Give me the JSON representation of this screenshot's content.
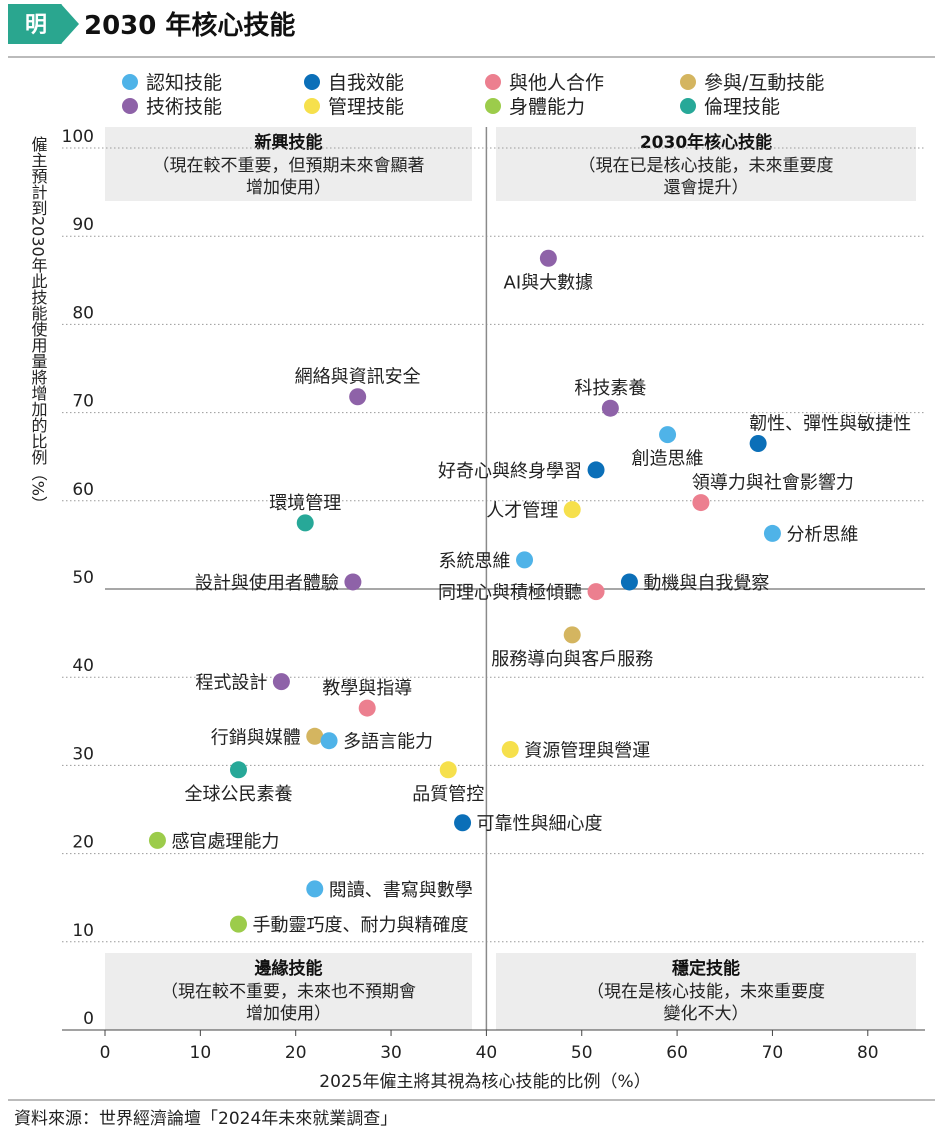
{
  "header": {
    "logo_text": "明",
    "title": "2030 年核心技能"
  },
  "colors": {
    "認知技能": "#4fb3e8",
    "自我效能": "#0b6fb8",
    "與他人合作": "#ec7f8f",
    "參與/互動技能": "#d4b560",
    "技術技能": "#8e62a8",
    "管理技能": "#f6e04c",
    "身體能力": "#9ccc4b",
    "倫理技能": "#27a898",
    "accent_green": "#2aa68f",
    "quadrant_bg": "#ededed"
  },
  "footer": {
    "source": "資料來源：世界經濟論壇「2024年未來就業調查」"
  },
  "chart_data": {
    "type": "scatter",
    "title": "2030 年核心技能",
    "xlabel": "2025年僱主將其視為核心技能的比例（%）",
    "ylabel": "僱主預計到2030年此技能使用量將增加的比例（%）",
    "xlim": [
      0,
      86
    ],
    "ylim": [
      0,
      100
    ],
    "xticks": [
      0,
      10,
      20,
      30,
      40,
      50,
      60,
      70,
      80
    ],
    "yticks": [
      0,
      10,
      20,
      30,
      40,
      50,
      60,
      70,
      80,
      90,
      100
    ],
    "divider_x": 40,
    "divider_y": 50,
    "grid": true,
    "legend": [
      "認知技能",
      "自我效能",
      "與他人合作",
      "參與/互動技能",
      "技術技能",
      "管理技能",
      "身體能力",
      "倫理技能"
    ],
    "quadrants": [
      {
        "id": "emerging",
        "position": "top-left",
        "title": "新興技能",
        "lines": [
          "（現在較不重要，但預期未來會顯著",
          "增加使用）"
        ]
      },
      {
        "id": "core",
        "position": "top-right",
        "title": "2030年核心技能",
        "lines": [
          "（現在已是核心技能，未來重要度",
          "還會提升）"
        ]
      },
      {
        "id": "marginal",
        "position": "bottom-left",
        "title": "邊緣技能",
        "lines": [
          "（現在較不重要，未來也不預期會",
          "增加使用）"
        ]
      },
      {
        "id": "stable",
        "position": "bottom-right",
        "title": "穩定技能",
        "lines": [
          "（現在是核心技能，未來重要度",
          "變化不大）"
        ]
      }
    ],
    "points": [
      {
        "label": "AI與大數據",
        "category": "技術技能",
        "x": 46.5,
        "y": 87.5,
        "label_pos": "below"
      },
      {
        "label": "網絡與資訊安全",
        "category": "技術技能",
        "x": 26.5,
        "y": 71.8,
        "label_pos": "above"
      },
      {
        "label": "科技素養",
        "category": "技術技能",
        "x": 53.0,
        "y": 70.5,
        "label_pos": "above"
      },
      {
        "label": "韌性、彈性與敏捷性",
        "category": "自我效能",
        "x": 68.5,
        "y": 66.5,
        "label_pos": "above-right"
      },
      {
        "label": "創造思維",
        "category": "認知技能",
        "x": 59.0,
        "y": 67.5,
        "label_pos": "below"
      },
      {
        "label": "好奇心與終身學習",
        "category": "自我效能",
        "x": 51.5,
        "y": 63.5,
        "label_pos": "left"
      },
      {
        "label": "領導力與社會影響力",
        "category": "與他人合作",
        "x": 62.5,
        "y": 59.8,
        "label_pos": "above-right"
      },
      {
        "label": "人才管理",
        "category": "管理技能",
        "x": 49.0,
        "y": 59.0,
        "label_pos": "left"
      },
      {
        "label": "分析思維",
        "category": "認知技能",
        "x": 70.0,
        "y": 56.3,
        "label_pos": "right"
      },
      {
        "label": "環境管理",
        "category": "倫理技能",
        "x": 21.0,
        "y": 57.5,
        "label_pos": "above"
      },
      {
        "label": "系統思維",
        "category": "認知技能",
        "x": 44.0,
        "y": 53.3,
        "label_pos": "left"
      },
      {
        "label": "設計與使用者體驗",
        "category": "技術技能",
        "x": 26.0,
        "y": 50.8,
        "label_pos": "left"
      },
      {
        "label": "動機與自我覺察",
        "category": "自我效能",
        "x": 55.0,
        "y": 50.8,
        "label_pos": "right"
      },
      {
        "label": "同理心與積極傾聽",
        "category": "與他人合作",
        "x": 51.5,
        "y": 49.7,
        "label_pos": "left"
      },
      {
        "label": "服務導向與客戶服務",
        "category": "參與/互動技能",
        "x": 49.0,
        "y": 44.8,
        "label_pos": "below"
      },
      {
        "label": "程式設計",
        "category": "技術技能",
        "x": 18.5,
        "y": 39.5,
        "label_pos": "left"
      },
      {
        "label": "教學與指導",
        "category": "與他人合作",
        "x": 27.5,
        "y": 36.5,
        "label_pos": "above"
      },
      {
        "label": "行銷與媒體",
        "category": "參與/互動技能",
        "x": 22.0,
        "y": 33.3,
        "label_pos": "left"
      },
      {
        "label": "多語言能力",
        "category": "認知技能",
        "x": 23.5,
        "y": 32.8,
        "label_pos": "right"
      },
      {
        "label": "資源管理與營運",
        "category": "管理技能",
        "x": 42.5,
        "y": 31.8,
        "label_pos": "right"
      },
      {
        "label": "全球公民素養",
        "category": "倫理技能",
        "x": 14.0,
        "y": 29.5,
        "label_pos": "below"
      },
      {
        "label": "品質管控",
        "category": "管理技能",
        "x": 36.0,
        "y": 29.5,
        "label_pos": "below"
      },
      {
        "label": "可靠性與細心度",
        "category": "自我效能",
        "x": 37.5,
        "y": 23.5,
        "label_pos": "right"
      },
      {
        "label": "感官處理能力",
        "category": "身體能力",
        "x": 5.5,
        "y": 21.5,
        "label_pos": "right"
      },
      {
        "label": "閱讀、書寫與數學",
        "category": "認知技能",
        "x": 22.0,
        "y": 16.0,
        "label_pos": "right"
      },
      {
        "label": "手動靈巧度、耐力與精確度",
        "category": "身體能力",
        "x": 14.0,
        "y": 12.0,
        "label_pos": "right"
      }
    ]
  }
}
